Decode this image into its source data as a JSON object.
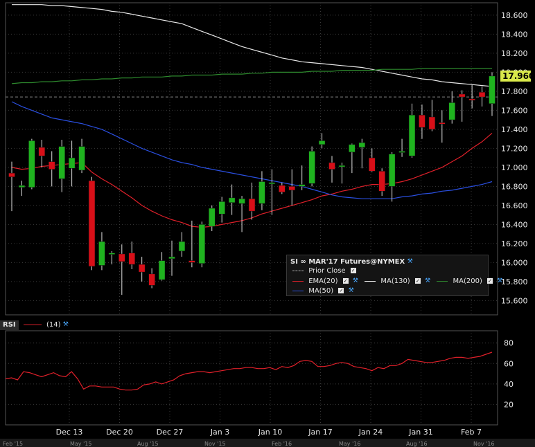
{
  "chart_data": [
    {
      "type": "candlestick",
      "title": "SI ∞ MAR'17 Futures@NYMEX",
      "x_labels": [
        "Dec 13",
        "Dec 20",
        "Dec 27",
        "Jan 3",
        "Jan 10",
        "Jan 17",
        "Jan 24",
        "Jan 31",
        "Feb 7"
      ],
      "timeline_labels": [
        "Feb '15",
        "May '15",
        "Aug '15",
        "Nov '15",
        "Feb '16",
        "May '16",
        "Aug '16",
        "Nov '16"
      ],
      "y_ticks": [
        15.6,
        15.8,
        16.0,
        16.2,
        16.4,
        16.6,
        16.8,
        17.0,
        17.2,
        17.4,
        17.6,
        17.8,
        18.0,
        18.2,
        18.4,
        18.6
      ],
      "ylim": [
        15.45,
        18.73
      ],
      "last_price_label": "17.960",
      "last_price": 17.96,
      "prior_close": 17.74,
      "ohlc": [
        [
          16.94,
          17.06,
          16.54,
          16.9
        ],
        [
          16.79,
          16.86,
          16.7,
          16.81
        ],
        [
          16.79,
          17.3,
          16.77,
          17.28
        ],
        [
          17.21,
          17.29,
          17.0,
          17.12
        ],
        [
          17.06,
          17.17,
          16.8,
          16.98
        ],
        [
          16.88,
          17.29,
          16.74,
          17.22
        ],
        [
          16.99,
          17.28,
          16.8,
          17.1
        ],
        [
          16.97,
          17.3,
          16.94,
          17.22
        ],
        [
          16.86,
          16.9,
          15.92,
          15.96
        ],
        [
          15.97,
          16.32,
          15.92,
          16.22
        ],
        [
          16.1,
          16.12,
          15.98,
          16.1
        ],
        [
          16.09,
          16.19,
          15.66,
          16.01
        ],
        [
          16.1,
          16.22,
          15.93,
          15.98
        ],
        [
          15.98,
          16.06,
          15.8,
          15.9
        ],
        [
          15.88,
          15.94,
          15.73,
          15.76
        ],
        [
          15.82,
          16.11,
          15.81,
          16.02
        ],
        [
          16.04,
          16.23,
          15.86,
          16.06
        ],
        [
          16.12,
          16.32,
          16.06,
          16.22
        ],
        [
          16.02,
          16.44,
          15.95,
          16.0
        ],
        [
          15.99,
          16.43,
          15.95,
          16.4
        ],
        [
          16.38,
          16.6,
          16.33,
          16.57
        ],
        [
          16.51,
          16.69,
          16.42,
          16.64
        ],
        [
          16.63,
          16.82,
          16.5,
          16.68
        ],
        [
          16.62,
          16.7,
          16.32,
          16.67
        ],
        [
          16.67,
          16.84,
          16.45,
          16.54
        ],
        [
          16.62,
          16.96,
          16.55,
          16.85
        ],
        [
          16.84,
          16.98,
          16.5,
          16.84
        ],
        [
          16.81,
          16.84,
          16.72,
          16.74
        ],
        [
          16.8,
          16.98,
          16.6,
          16.76
        ],
        [
          16.8,
          17.02,
          16.76,
          16.82
        ],
        [
          16.83,
          17.22,
          16.8,
          17.17
        ],
        [
          17.24,
          17.36,
          17.2,
          17.28
        ],
        [
          17.05,
          17.12,
          16.84,
          16.98
        ],
        [
          17.02,
          17.05,
          16.83,
          17.02
        ],
        [
          17.16,
          17.25,
          16.94,
          17.24
        ],
        [
          17.21,
          17.3,
          16.99,
          17.26
        ],
        [
          17.1,
          17.2,
          16.95,
          16.96
        ],
        [
          16.96,
          16.99,
          16.7,
          16.75
        ],
        [
          16.8,
          17.16,
          16.64,
          17.14
        ],
        [
          17.17,
          17.3,
          17.11,
          17.17
        ],
        [
          17.12,
          17.67,
          17.1,
          17.55
        ],
        [
          17.55,
          17.66,
          17.3,
          17.42
        ],
        [
          17.53,
          17.71,
          17.38,
          17.4
        ],
        [
          17.47,
          17.6,
          17.26,
          17.46
        ],
        [
          17.5,
          17.8,
          17.46,
          17.68
        ],
        [
          17.77,
          17.81,
          17.48,
          17.74
        ],
        [
          17.72,
          17.87,
          17.62,
          17.71
        ],
        [
          17.79,
          17.85,
          17.64,
          17.74
        ],
        [
          17.67,
          18.0,
          17.54,
          17.96
        ]
      ],
      "series": [
        {
          "name": "EMA(20)",
          "color": "#e0202a",
          "values": [
            17.0,
            16.98,
            16.99,
            17.01,
            17.02,
            17.03,
            17.04,
            17.05,
            16.95,
            16.88,
            16.82,
            16.75,
            16.68,
            16.6,
            16.54,
            16.49,
            16.45,
            16.42,
            16.38,
            16.37,
            16.38,
            16.4,
            16.42,
            16.44,
            16.47,
            16.51,
            16.54,
            16.57,
            16.6,
            16.63,
            16.66,
            16.7,
            16.72,
            16.75,
            16.77,
            16.8,
            16.82,
            16.82,
            16.83,
            16.85,
            16.88,
            16.92,
            16.96,
            17.0,
            17.06,
            17.12,
            17.2,
            17.27,
            17.36
          ]
        },
        {
          "name": "MA(130)",
          "color": "#e8e8e8",
          "values": [
            18.71,
            18.71,
            18.71,
            18.71,
            18.7,
            18.7,
            18.69,
            18.68,
            18.67,
            18.66,
            18.64,
            18.63,
            18.61,
            18.59,
            18.57,
            18.55,
            18.53,
            18.51,
            18.47,
            18.43,
            18.39,
            18.35,
            18.31,
            18.27,
            18.24,
            18.21,
            18.18,
            18.15,
            18.13,
            18.11,
            18.1,
            18.09,
            18.08,
            18.07,
            18.06,
            18.05,
            18.03,
            18.01,
            17.99,
            17.97,
            17.95,
            17.93,
            17.92,
            17.9,
            17.89,
            17.88,
            17.87,
            17.86,
            17.85
          ]
        },
        {
          "name": "MA(200)",
          "color": "#2e8b2e",
          "values": [
            17.88,
            17.89,
            17.89,
            17.9,
            17.9,
            17.91,
            17.91,
            17.92,
            17.92,
            17.93,
            17.93,
            17.94,
            17.94,
            17.95,
            17.95,
            17.95,
            17.96,
            17.96,
            17.97,
            17.97,
            17.97,
            17.98,
            17.98,
            17.98,
            17.99,
            17.99,
            18.0,
            18.0,
            18.0,
            18.0,
            18.01,
            18.01,
            18.01,
            18.02,
            18.02,
            18.02,
            18.02,
            18.03,
            18.03,
            18.03,
            18.03,
            18.04,
            18.04,
            18.04,
            18.04,
            18.04,
            18.04,
            18.04,
            18.04
          ]
        },
        {
          "name": "MA(50)",
          "color": "#2a4fe0",
          "values": [
            17.69,
            17.64,
            17.6,
            17.56,
            17.52,
            17.5,
            17.48,
            17.46,
            17.43,
            17.4,
            17.35,
            17.3,
            17.25,
            17.2,
            17.16,
            17.12,
            17.08,
            17.05,
            17.03,
            17.0,
            16.98,
            16.96,
            16.94,
            16.92,
            16.9,
            16.88,
            16.86,
            16.84,
            16.82,
            16.8,
            16.77,
            16.74,
            16.71,
            16.69,
            16.68,
            16.67,
            16.67,
            16.67,
            16.67,
            16.69,
            16.7,
            16.72,
            16.73,
            16.75,
            16.76,
            16.78,
            16.8,
            16.82,
            16.85
          ]
        }
      ]
    },
    {
      "type": "line",
      "title": "RSI",
      "y_ticks": [
        20,
        40,
        60,
        80
      ],
      "ylim": [
        0,
        92
      ],
      "series": [
        {
          "name": "(14)",
          "color": "#e0202a",
          "values": [
            45,
            46,
            44,
            52,
            51,
            49,
            47,
            49,
            51,
            48,
            47,
            52,
            45,
            35,
            38,
            38,
            37,
            37,
            37,
            35,
            34,
            34,
            35,
            39,
            40,
            42,
            40,
            42,
            44,
            48,
            50,
            51,
            52,
            52,
            51,
            52,
            53,
            54,
            55,
            55,
            56,
            56,
            55,
            55,
            56,
            54,
            57,
            56,
            58,
            62,
            63,
            62,
            57,
            57,
            58,
            60,
            61,
            60,
            57,
            56,
            55,
            53,
            56,
            55,
            58,
            58,
            60,
            64,
            63,
            62,
            61,
            61,
            62,
            63,
            65,
            66,
            66,
            65,
            66,
            67,
            69,
            71
          ]
        }
      ]
    }
  ],
  "legend": {
    "title": "SI ∞ MAR'17 Futures@NYMEX",
    "prior_close": "Prior Close",
    "ema": "EMA(20)",
    "ma130": "MA(130)",
    "ma200": "MA(200)",
    "ma50": "MA(50)"
  },
  "rsi_panel": {
    "label": "RSI",
    "period": "(14)"
  },
  "colors": {
    "up": "#1fb31f",
    "down": "#d80f18",
    "grid": "#3a3a3a",
    "axis_text": "#e6e6e6"
  },
  "icons": {
    "check": "checkbox-icon",
    "wrench": "wrench-icon"
  }
}
